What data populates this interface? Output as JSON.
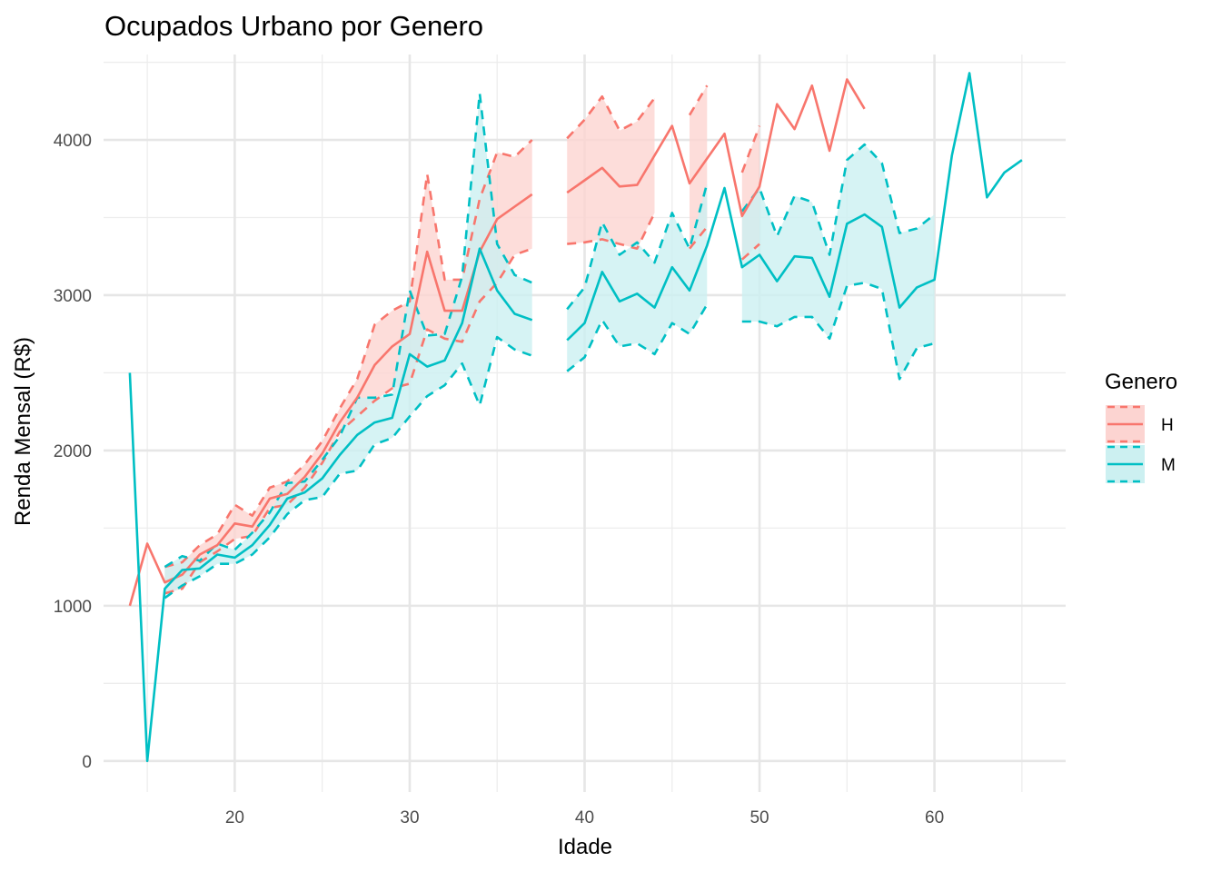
{
  "chart_data": {
    "type": "line",
    "title": "Ocupados Urbano por Genero",
    "xlabel": "Idade",
    "ylabel": "Renda Mensal (R$)",
    "xlim": [
      12.5,
      67.5
    ],
    "ylim": [
      -200,
      4550
    ],
    "x_ticks": [
      20,
      30,
      40,
      50,
      60
    ],
    "y_ticks": [
      0,
      1000,
      2000,
      3000,
      4000
    ],
    "grid": true,
    "legend": {
      "title": "Genero",
      "position": "right"
    },
    "series": [
      {
        "name": "H",
        "color": "#F8766D",
        "fill": "#FCD4D1",
        "x": [
          14,
          15,
          16,
          17,
          18,
          19,
          20,
          21,
          22,
          23,
          24,
          25,
          26,
          27,
          28,
          29,
          30,
          31,
          32,
          33,
          34,
          35,
          36,
          37,
          null,
          39,
          40,
          41,
          42,
          43,
          44,
          45,
          46,
          47,
          48,
          49,
          50,
          51,
          52,
          53,
          54,
          55,
          56
        ],
        "y": [
          1000,
          1400,
          1150,
          1200,
          1330,
          1390,
          1530,
          1510,
          1690,
          1720,
          1830,
          1980,
          2180,
          2340,
          2550,
          2670,
          2750,
          3280,
          2900,
          2900,
          3280,
          3490,
          3570,
          3650,
          null,
          3660,
          3740,
          3820,
          3700,
          3710,
          3900,
          4090,
          3720,
          3880,
          4040,
          3510,
          3700,
          4230,
          4070,
          4350,
          3930,
          4390,
          4200
        ],
        "lower": [
          null,
          null,
          1080,
          1110,
          1280,
          1350,
          1430,
          1450,
          1630,
          1650,
          1760,
          1920,
          2120,
          2220,
          2320,
          2400,
          2430,
          2780,
          2720,
          2700,
          2960,
          3080,
          3260,
          3300,
          null,
          3330,
          3340,
          3360,
          3330,
          3300,
          3530,
          null,
          3300,
          3440,
          null,
          3230,
          3330,
          null,
          null,
          null,
          null,
          null,
          null
        ],
        "upper": [
          null,
          null,
          1250,
          1280,
          1390,
          1460,
          1650,
          1580,
          1760,
          1800,
          1910,
          2060,
          2270,
          2460,
          2810,
          2900,
          2960,
          3780,
          3100,
          3100,
          3620,
          3920,
          3890,
          4000,
          null,
          4010,
          4130,
          4280,
          4060,
          4120,
          4270,
          null,
          4160,
          4350,
          null,
          3790,
          4090,
          null,
          null,
          null,
          null,
          null,
          null
        ]
      },
      {
        "name": "M",
        "color": "#00BFC4",
        "fill": "#CCF0F1",
        "x": [
          14,
          15,
          16,
          17,
          18,
          19,
          20,
          21,
          22,
          23,
          24,
          25,
          26,
          27,
          28,
          29,
          30,
          31,
          32,
          33,
          34,
          35,
          36,
          37,
          null,
          39,
          40,
          41,
          42,
          43,
          44,
          45,
          46,
          47,
          48,
          49,
          50,
          51,
          52,
          53,
          54,
          55,
          56,
          57,
          58,
          59,
          60,
          61,
          62,
          63,
          64,
          65
        ],
        "y": [
          2500,
          0,
          1110,
          1230,
          1240,
          1330,
          1310,
          1390,
          1520,
          1690,
          1730,
          1820,
          1970,
          2100,
          2180,
          2210,
          2620,
          2540,
          2580,
          2820,
          3300,
          3030,
          2880,
          2840,
          null,
          2710,
          2820,
          3150,
          2960,
          3010,
          2920,
          3180,
          3030,
          3320,
          3690,
          3180,
          3260,
          3090,
          3250,
          3240,
          2990,
          3460,
          3520,
          3440,
          2920,
          3050,
          3100,
          3900,
          4430,
          3630,
          3790,
          3870
        ],
        "lower": [
          null,
          null,
          1050,
          1130,
          1190,
          1270,
          1270,
          1330,
          1440,
          1590,
          1680,
          1700,
          1850,
          1870,
          2040,
          2080,
          2220,
          2350,
          2420,
          2560,
          2290,
          2730,
          2650,
          2610,
          null,
          2510,
          2600,
          2840,
          2670,
          2690,
          2620,
          2820,
          2750,
          2940,
          null,
          2830,
          2830,
          2800,
          2860,
          2860,
          2720,
          3060,
          3080,
          3040,
          2460,
          2660,
          2690,
          null,
          null,
          null,
          null,
          null
        ],
        "upper": [
          null,
          null,
          1250,
          1320,
          1290,
          1400,
          1360,
          1470,
          1600,
          1790,
          1800,
          1940,
          2090,
          2340,
          2340,
          2360,
          3030,
          2740,
          2750,
          3120,
          4300,
          3330,
          3130,
          3080,
          null,
          2910,
          3050,
          3470,
          3260,
          3340,
          3210,
          3530,
          3300,
          3720,
          null,
          3540,
          3690,
          3380,
          3640,
          3600,
          3260,
          3870,
          3970,
          3850,
          3400,
          3430,
          3520,
          null,
          null,
          null,
          null,
          null
        ]
      }
    ]
  }
}
